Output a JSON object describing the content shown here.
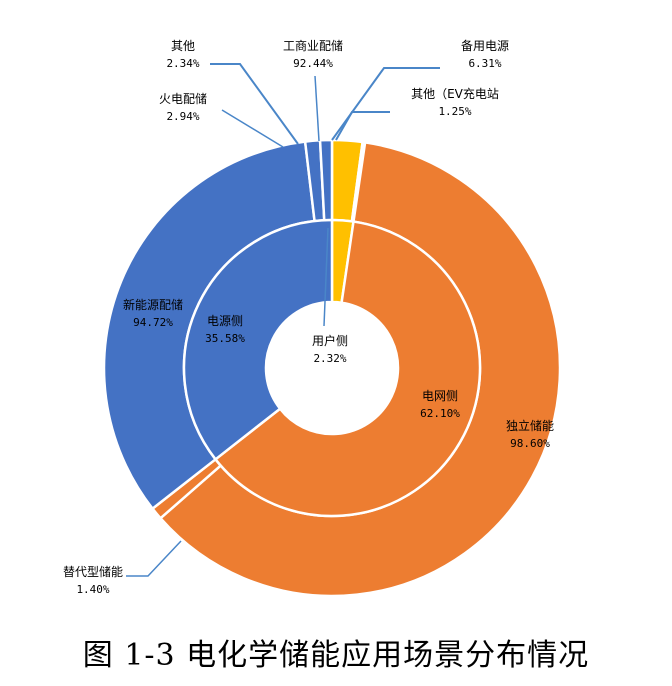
{
  "chart_data": {
    "type": "pie",
    "caption": "图 1-3 电化学储能应用场景分布情况",
    "colors": {
      "orange": "#ED7D31",
      "blue": "#4472C4",
      "yellow": "#FFC000",
      "leader": "#4A86C8"
    },
    "inner": [
      {
        "name": "用户侧",
        "value": "2.32%",
        "share": 2.32,
        "color": "#FFC000"
      },
      {
        "name": "电网侧",
        "value": "62.10%",
        "share": 62.1,
        "color": "#ED7D31"
      },
      {
        "name": "电源侧",
        "value": "35.58%",
        "share": 35.58,
        "color": "#4472C4"
      }
    ],
    "outer": [
      {
        "name": "工商业配储",
        "value": "92.44%",
        "share": 2.145,
        "color": "#FFC000"
      },
      {
        "name": "备用电源",
        "value": "6.31%",
        "share": 0.146,
        "color": "#FFC000"
      },
      {
        "name": "其他（EV充电站",
        "value": "1.25%",
        "share": 0.029,
        "color": "#FFC000"
      },
      {
        "name": "独立储能",
        "value": "98.60%",
        "share": 61.23,
        "color": "#ED7D31"
      },
      {
        "name": "替代型储能",
        "value": "1.40%",
        "share": 0.87,
        "color": "#ED7D31"
      },
      {
        "name": "新能源配储",
        "value": "94.72%",
        "share": 33.7,
        "color": "#4472C4"
      },
      {
        "name": "火电配储",
        "value": "2.94%",
        "share": 1.046,
        "color": "#4472C4"
      },
      {
        "name": "其他",
        "value": "2.34%",
        "share": 0.834,
        "color": "#4472C4"
      }
    ]
  }
}
